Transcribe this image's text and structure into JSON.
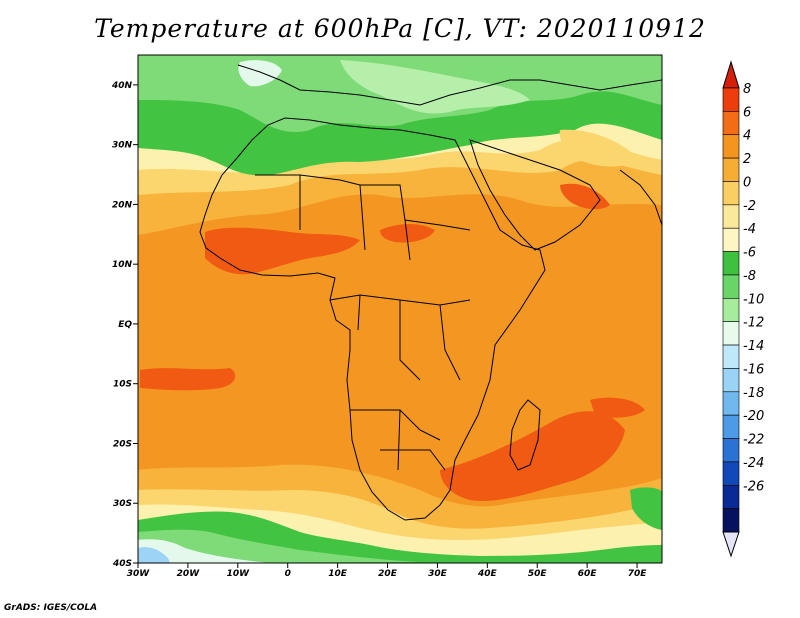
{
  "title": "Temperature at 600hPa [C], VT: 2020110912",
  "credit": "GrADS: IGES/COLA",
  "map": {
    "lon_range": [
      -30,
      75
    ],
    "lat_range": [
      -40,
      45
    ],
    "lat_ticks": [
      {
        "value": 40,
        "label": "40N"
      },
      {
        "value": 30,
        "label": "30N"
      },
      {
        "value": 20,
        "label": "20N"
      },
      {
        "value": 10,
        "label": "10N"
      },
      {
        "value": 0,
        "label": "EQ"
      },
      {
        "value": -10,
        "label": "10S"
      },
      {
        "value": -20,
        "label": "20S"
      },
      {
        "value": -30,
        "label": "30S"
      },
      {
        "value": -40,
        "label": "40S"
      }
    ],
    "lon_ticks": [
      {
        "value": -30,
        "label": "30W"
      },
      {
        "value": -20,
        "label": "20W"
      },
      {
        "value": -10,
        "label": "10W"
      },
      {
        "value": 0,
        "label": "0"
      },
      {
        "value": 10,
        "label": "10E"
      },
      {
        "value": 20,
        "label": "20E"
      },
      {
        "value": 30,
        "label": "30E"
      },
      {
        "value": 40,
        "label": "40E"
      },
      {
        "value": 50,
        "label": "50E"
      },
      {
        "value": 60,
        "label": "60E"
      },
      {
        "value": 70,
        "label": "70E"
      }
    ]
  },
  "colorbar": {
    "levels": [
      "8",
      "6",
      "4",
      "2",
      "0",
      "-2",
      "-4",
      "-6",
      "-8",
      "-10",
      "-12",
      "-14",
      "-16",
      "-18",
      "-20",
      "-22",
      "-24",
      "-26"
    ],
    "colors_top_to_bottom": [
      "#ee3d0c",
      "#f26d16",
      "#f3951e",
      "#f6ad34",
      "#f9cf63",
      "#fae99a",
      "#fdf6c2",
      "#3fc13f",
      "#69d569",
      "#a6ec9d",
      "#e8faec",
      "#bfe8fb",
      "#99d4f7",
      "#70b9ee",
      "#4d9be6",
      "#2a73d4",
      "#1149b8",
      "#0a2a94",
      "#07125e"
    ],
    "top_arrow_color": "#d51f0a",
    "bottom_arrow_color": "#e4e4f8"
  },
  "legend_colors": {
    "hot": "#f05a12",
    "warm": "#f49722",
    "mild": "#f7b33c",
    "cool": "#fbd66e",
    "pale": "#fdf1b0",
    "green": "#42c442",
    "lightgreen": "#7edb78",
    "palegreen": "#b5efaa",
    "cyan": "#e4f9ec",
    "blue": "#9dd3f5"
  }
}
